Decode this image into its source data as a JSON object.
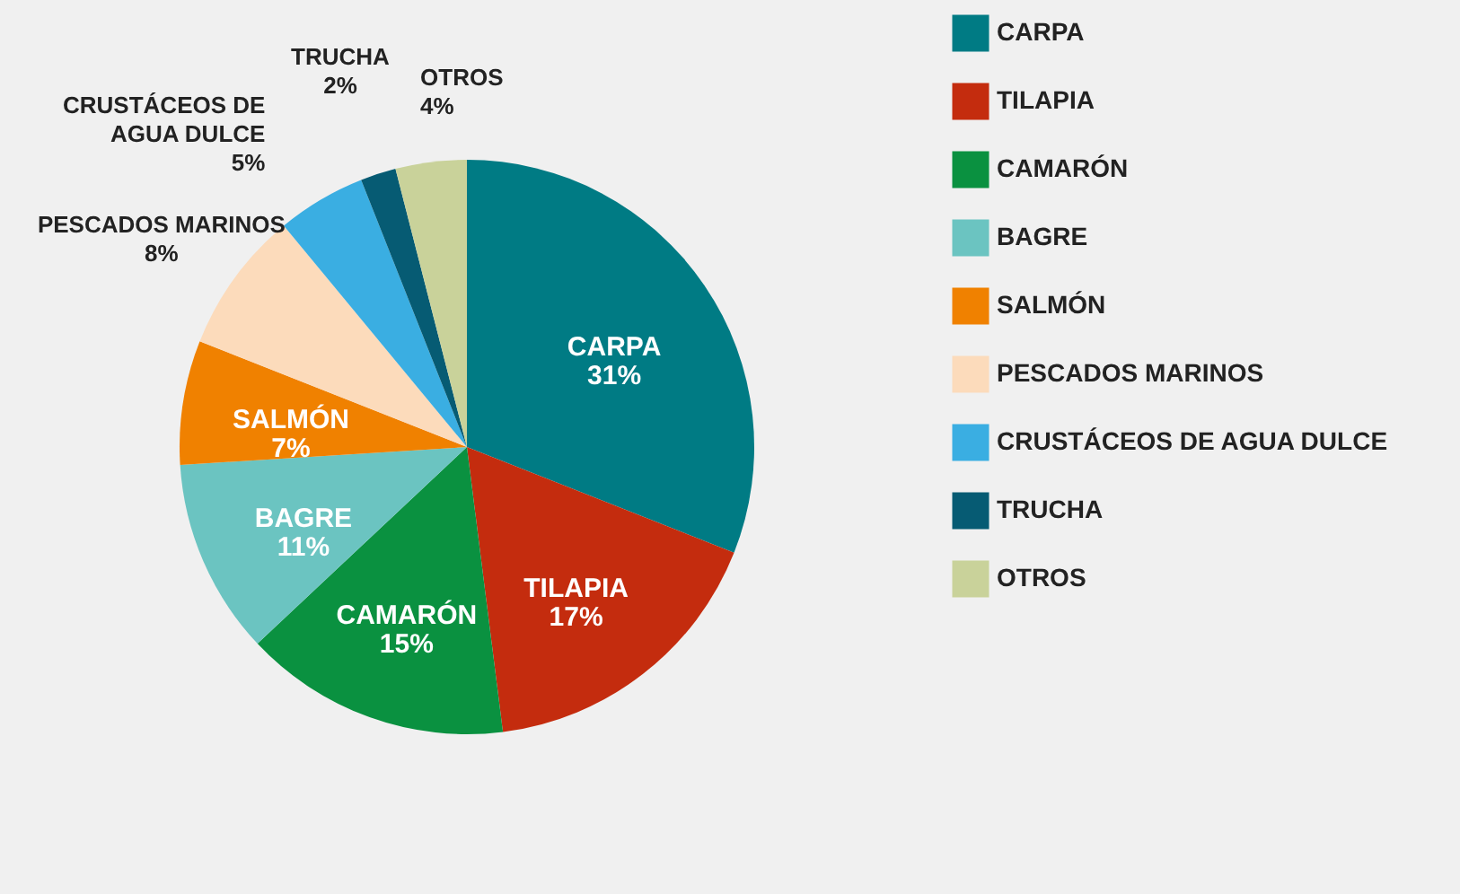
{
  "chart_data": {
    "type": "pie",
    "categories": [
      "CARPA",
      "TILAPIA",
      "CAMARÓN",
      "BAGRE",
      "SALMÓN",
      "PESCADOS MARINOS",
      "CRUSTÁCEOS DE AGUA DULCE",
      "TRUCHA",
      "OTROS"
    ],
    "values": [
      31,
      17,
      15,
      11,
      7,
      8,
      5,
      2,
      4
    ],
    "value_labels": [
      "31%",
      "17%",
      "15%",
      "11%",
      "7%",
      "8%",
      "5%",
      "2%",
      "4%"
    ],
    "colors": [
      "#007b84",
      "#c42c0e",
      "#0a9140",
      "#6bc4c1",
      "#f08100",
      "#fcdbbb",
      "#3aaee2",
      "#065b73",
      "#c9d29a"
    ],
    "legend": "right"
  }
}
